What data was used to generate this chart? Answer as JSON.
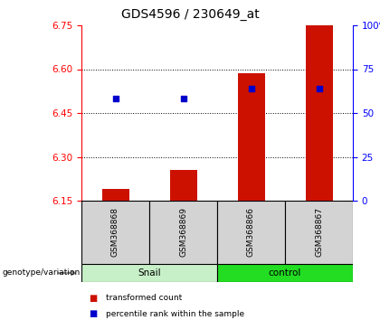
{
  "title": "GDS4596 / 230649_at",
  "samples": [
    "GSM368868",
    "GSM368869",
    "GSM368866",
    "GSM368867"
  ],
  "bar_values": [
    6.19,
    6.255,
    6.585,
    6.75
  ],
  "bar_base": 6.15,
  "bar_color": "#cc1100",
  "percentile_values": [
    58,
    58,
    64,
    64
  ],
  "percentile_color": "#0000cc",
  "ylim_left": [
    6.15,
    6.75
  ],
  "ylim_right": [
    0,
    100
  ],
  "yticks_left": [
    6.15,
    6.3,
    6.45,
    6.6,
    6.75
  ],
  "yticks_right": [
    0,
    25,
    50,
    75,
    100
  ],
  "ytick_labels_right": [
    "0",
    "25",
    "50",
    "75",
    "100%"
  ],
  "grid_yticks": [
    6.3,
    6.45,
    6.6
  ],
  "sample_bg_color": "#d3d3d3",
  "snail_color": "#c8f0c8",
  "control_color": "#22dd22",
  "legend_items": [
    "transformed count",
    "percentile rank within the sample"
  ],
  "legend_colors": [
    "#cc1100",
    "#0000cc"
  ],
  "bar_width": 0.4,
  "title_fontsize": 10,
  "tick_fontsize": 7.5,
  "genotype_label": "genotype/variation"
}
